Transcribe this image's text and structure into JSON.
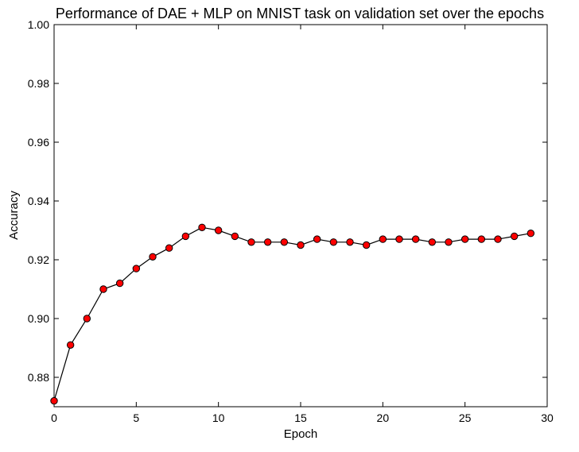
{
  "chart_data": {
    "type": "line",
    "title": "Performance of DAE + MLP on MNIST task on validation set over the epochs",
    "xlabel": "Epoch",
    "ylabel": "Accuracy",
    "xlim": [
      0,
      30
    ],
    "ylim": [
      0.87,
      1.0
    ],
    "x_ticks": [
      "0",
      "5",
      "10",
      "15",
      "20",
      "25",
      "30"
    ],
    "y_ticks": [
      "0.88",
      "0.90",
      "0.92",
      "0.94",
      "0.96",
      "0.98",
      "1.00"
    ],
    "grid": false,
    "line_color": "#000000",
    "marker_color": "#ff0000",
    "series": [
      {
        "x": [
          0,
          1,
          2,
          3,
          4,
          5,
          6,
          7,
          8,
          9,
          10,
          11,
          12,
          13,
          14,
          15,
          16,
          17,
          18,
          19,
          20,
          21,
          22,
          23,
          24,
          25,
          26,
          27,
          28,
          29
        ],
        "values": [
          0.872,
          0.891,
          0.9,
          0.91,
          0.912,
          0.917,
          0.921,
          0.924,
          0.928,
          0.931,
          0.93,
          0.928,
          0.926,
          0.926,
          0.926,
          0.925,
          0.927,
          0.926,
          0.926,
          0.925,
          0.927,
          0.927,
          0.927,
          0.926,
          0.926,
          0.927,
          0.927,
          0.927,
          0.928,
          0.929
        ]
      }
    ]
  }
}
